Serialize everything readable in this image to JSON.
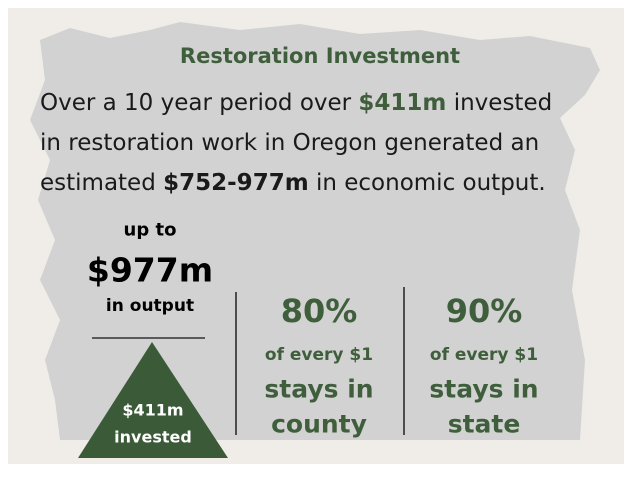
{
  "title": "Restoration Investment",
  "body": {
    "lines": [
      [
        "Over a 10 year period over ",
        "$411m",
        " invested"
      ],
      [
        "in restoration work in Oregon generated an"
      ],
      [
        "estimated ",
        "$752-977m",
        " in economic output."
      ]
    ]
  },
  "output_block": {
    "prefix": "up to",
    "amount": "$977m",
    "suffix": "in output",
    "invested_amount": "$411m",
    "invested_label": "invested"
  },
  "stats": [
    {
      "percent": "80%",
      "line1": "of every $1",
      "line2": "stays in",
      "line3": "county"
    },
    {
      "percent": "90%",
      "line1": "of every $1",
      "line2": "stays in",
      "line3": "state"
    }
  ]
}
